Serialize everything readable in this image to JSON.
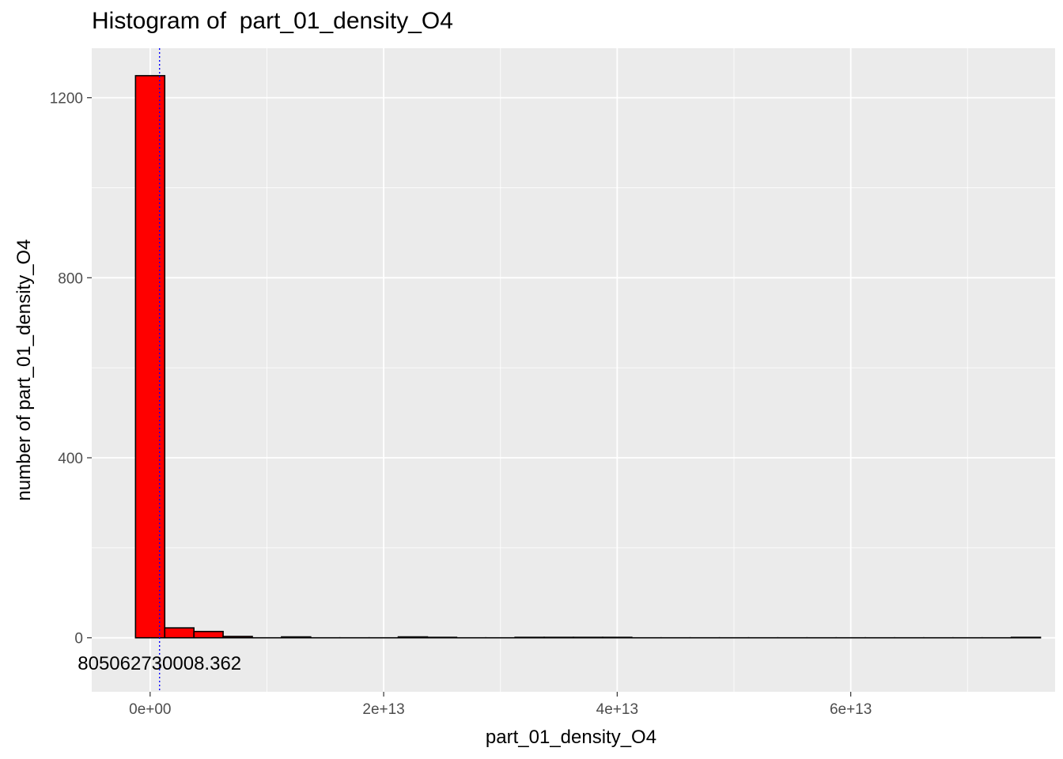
{
  "chart_data": {
    "type": "bar",
    "title": "Histogram of  part_01_density_O4",
    "xlabel": "part_01_density_O4",
    "ylabel": "number of  part_01_density_O4",
    "bin_width": 2500000000000,
    "bins": [
      {
        "x_start": -1250000000000,
        "x_end": 1250000000000,
        "count": 1249
      },
      {
        "x_start": 1250000000000,
        "x_end": 3750000000000,
        "count": 22
      },
      {
        "x_start": 3750000000000,
        "x_end": 6250000000000,
        "count": 14
      },
      {
        "x_start": 6250000000000,
        "x_end": 8750000000000,
        "count": 3
      },
      {
        "x_start": 8750000000000,
        "x_end": 11250000000000,
        "count": 0
      },
      {
        "x_start": 11250000000000,
        "x_end": 13750000000000,
        "count": 2
      },
      {
        "x_start": 13750000000000,
        "x_end": 16250000000000,
        "count": 0
      },
      {
        "x_start": 16250000000000,
        "x_end": 18750000000000,
        "count": 0
      },
      {
        "x_start": 18750000000000,
        "x_end": 21250000000000,
        "count": 0
      },
      {
        "x_start": 21250000000000,
        "x_end": 23750000000000,
        "count": 2
      },
      {
        "x_start": 23750000000000,
        "x_end": 26250000000000,
        "count": 1
      },
      {
        "x_start": 26250000000000,
        "x_end": 28750000000000,
        "count": 0
      },
      {
        "x_start": 28750000000000,
        "x_end": 31250000000000,
        "count": 0
      },
      {
        "x_start": 31250000000000,
        "x_end": 33750000000000,
        "count": 1
      },
      {
        "x_start": 33750000000000,
        "x_end": 36250000000000,
        "count": 1
      },
      {
        "x_start": 36250000000000,
        "x_end": 38750000000000,
        "count": 1
      },
      {
        "x_start": 38750000000000,
        "x_end": 41250000000000,
        "count": 1
      },
      {
        "x_start": 41250000000000,
        "x_end": 43750000000000,
        "count": 0
      },
      {
        "x_start": 43750000000000,
        "x_end": 46250000000000,
        "count": 0
      },
      {
        "x_start": 46250000000000,
        "x_end": 48750000000000,
        "count": 0
      },
      {
        "x_start": 48750000000000,
        "x_end": 51250000000000,
        "count": 0
      },
      {
        "x_start": 51250000000000,
        "x_end": 53750000000000,
        "count": 0
      },
      {
        "x_start": 53750000000000,
        "x_end": 56250000000000,
        "count": 0
      },
      {
        "x_start": 56250000000000,
        "x_end": 58750000000000,
        "count": 0
      },
      {
        "x_start": 58750000000000,
        "x_end": 61250000000000,
        "count": 0
      },
      {
        "x_start": 61250000000000,
        "x_end": 63750000000000,
        "count": 0
      },
      {
        "x_start": 63750000000000,
        "x_end": 66250000000000,
        "count": 0
      },
      {
        "x_start": 66250000000000,
        "x_end": 68750000000000,
        "count": 0
      },
      {
        "x_start": 68750000000000,
        "x_end": 71250000000000,
        "count": 0
      },
      {
        "x_start": 71250000000000,
        "x_end": 73750000000000,
        "count": 0
      },
      {
        "x_start": 73750000000000,
        "x_end": 76250000000000,
        "count": 1
      }
    ],
    "x_ticks": [
      {
        "value": 0,
        "label": "0e+00"
      },
      {
        "value": 20000000000000,
        "label": "2e+13"
      },
      {
        "value": 40000000000000,
        "label": "4e+13"
      },
      {
        "value": 60000000000000,
        "label": "6e+13"
      }
    ],
    "y_ticks": [
      {
        "value": 0,
        "label": "0"
      },
      {
        "value": 400,
        "label": "400"
      },
      {
        "value": 800,
        "label": "800"
      },
      {
        "value": 1200,
        "label": "1200"
      }
    ],
    "xlim": [
      -5000000000000,
      77500000000000
    ],
    "ylim": [
      -120,
      1310
    ],
    "mean_line": {
      "value": 805062730008.362,
      "label": "805062730008.362",
      "label_y": -55,
      "style": "dotted",
      "color": "#0000ff"
    },
    "bar_fill": "#ff0000",
    "bar_stroke": "#000000",
    "panel_background": "#ebebeb",
    "grid_color": "#ffffff",
    "grid": true,
    "legend": "none"
  }
}
